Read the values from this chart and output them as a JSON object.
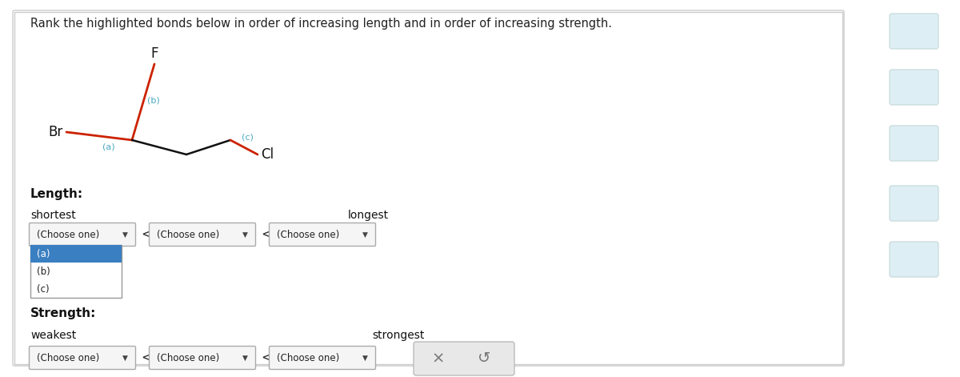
{
  "title": "Rank the highlighted bonds below in order of increasing length and in order of increasing strength.",
  "bg_color": "#ffffff",
  "bond_a_color": "#cc2200",
  "bond_b_color": "#cc2200",
  "bond_c_color": "#111111",
  "bond_cc_color": "#111111",
  "label_color": "#4aa8c0",
  "atom_color": "#111111",
  "length_label": "Length:",
  "shortest_label": "shortest",
  "longest_label": "longest",
  "strength_label": "Strength:",
  "weakest_label": "weakest",
  "strongest_label": "strongest",
  "dropdown_text": "(Choose one)",
  "dropdown_options": [
    "(a)",
    "(b)",
    "(c)"
  ],
  "dropdown_selected": "(a)",
  "separator": "<",
  "button_x": "×",
  "button_undo": "↺",
  "highlight_color": "#3a7fc1",
  "dropdown_border": "#aaaaaa",
  "dropdown_bg": "#f5f5f5",
  "list_border": "#999999"
}
